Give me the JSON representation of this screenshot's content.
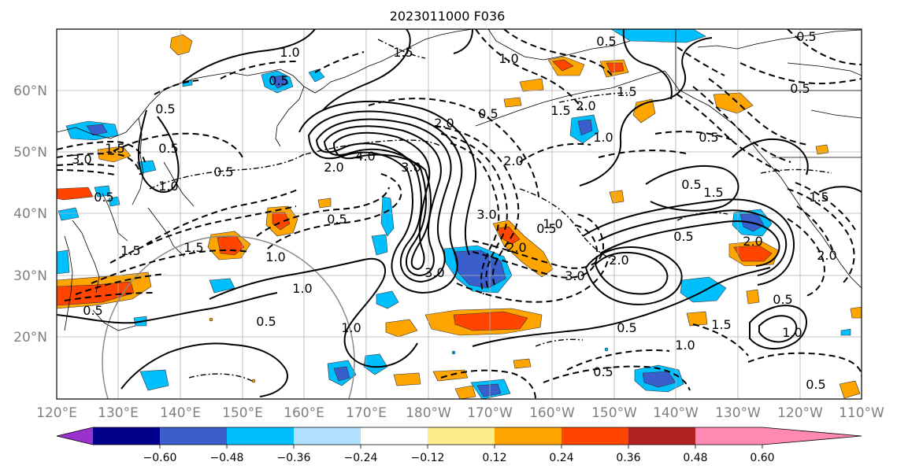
{
  "title": "2023011000 F036",
  "lat_labels": [
    "60°N",
    "50°N",
    "40°N",
    "30°N",
    "20°N"
  ],
  "lon_labels": [
    "120°E",
    "130°E",
    "140°E",
    "150°E",
    "160°E",
    "170°E",
    "180°W",
    "170°W",
    "160°W",
    "150°W",
    "140°W",
    "130°W",
    "120°W",
    "110°W"
  ],
  "colorbar": {
    "ticks": [
      "−0.60",
      "−0.48",
      "−0.36",
      "−0.24",
      "−0.12",
      "0.12",
      "0.24",
      "0.36",
      "0.48",
      "0.60"
    ],
    "colors": [
      "#9932cc",
      "#00008b",
      "#3a5fcd",
      "#00bfff",
      "#b0e2ff",
      "#ffffff",
      "#ffec8b",
      "#ffa500",
      "#ff4500",
      "#b22222",
      "#ff89b0"
    ]
  },
  "contour_labels": [
    "1.0",
    "0.5",
    "1.5",
    "0.5",
    "1.0",
    "0.5",
    "0.5",
    "2.0",
    "4.0",
    "3.0",
    "2.0",
    "3.0",
    "1.0",
    "0.5",
    "0.5",
    "1.0",
    "1.0",
    "0.5",
    "3.0",
    "0.5",
    "2.0",
    "3.0",
    "2.0",
    "0.5",
    "1.5",
    "1.5",
    "0.5",
    "1.5",
    "0.5",
    "0.5",
    "1.0",
    "1.5",
    "2.0",
    "1.5",
    "0.5",
    "0.5",
    "0.5",
    "1.0",
    "0.5",
    "1.0",
    "2.0",
    "1.5",
    "0.5",
    "1.0",
    "1.5",
    "0.5",
    "0.5",
    "1.5",
    "2.0",
    "1.0",
    "0.5",
    "3.0",
    "2.0"
  ]
}
